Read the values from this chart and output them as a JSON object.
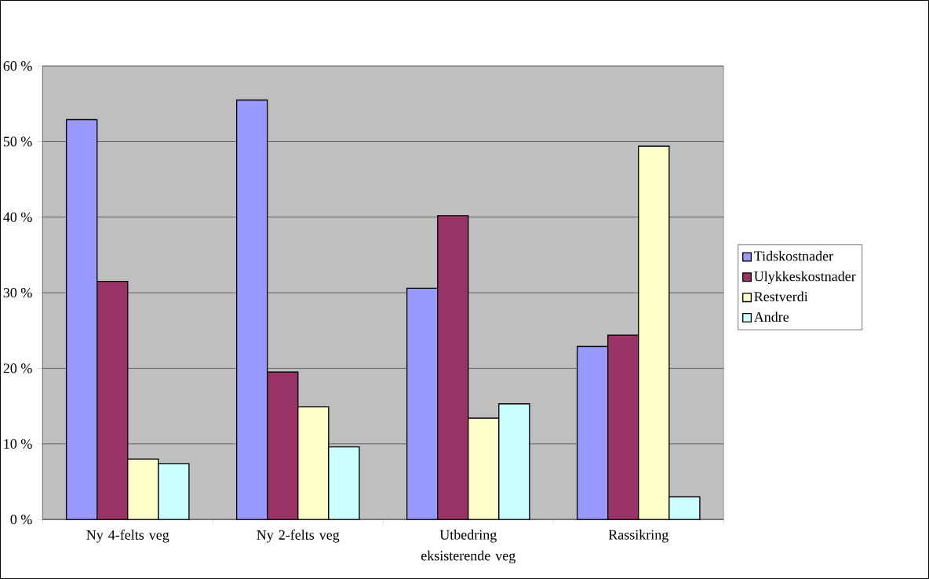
{
  "chart_data": {
    "type": "bar",
    "categories": [
      "Ny 4-felts veg",
      "Ny 2-felts veg",
      "Utbedring eksisterende veg",
      "Rassikring"
    ],
    "series": [
      {
        "name": "Tidskostnader",
        "color": "#9999ff",
        "values": [
          52.9,
          55.5,
          30.6,
          22.9
        ]
      },
      {
        "name": "Ulykkeskostnader",
        "color": "#993366",
        "values": [
          31.5,
          19.5,
          40.2,
          24.4
        ]
      },
      {
        "name": "Restverdi",
        "color": "#ffffcc",
        "values": [
          8.0,
          14.9,
          13.4,
          49.4
        ]
      },
      {
        "name": "Andre",
        "color": "#ccffff",
        "values": [
          7.4,
          9.6,
          15.3,
          3.0
        ]
      }
    ],
    "ylim": [
      0,
      60
    ],
    "yticks": [
      {
        "value": 0,
        "label": "0 %"
      },
      {
        "value": 10,
        "label": "10 %"
      },
      {
        "value": 20,
        "label": "20 %"
      },
      {
        "value": 30,
        "label": "30 %"
      },
      {
        "value": 40,
        "label": "40 %"
      },
      {
        "value": 50,
        "label": "50 %"
      },
      {
        "value": 60,
        "label": "60 %"
      }
    ],
    "grid": "y",
    "legend": "right"
  }
}
